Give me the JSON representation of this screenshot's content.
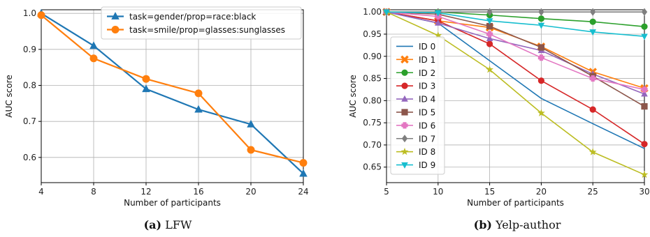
{
  "chart_data": [
    {
      "type": "line",
      "caption_label": "(a)",
      "caption_text": "LFW",
      "xlabel": "Number of participants",
      "ylabel": "AUC score",
      "xlim": [
        4,
        24
      ],
      "ylim": [
        0.53,
        1.01
      ],
      "xticks": [
        4,
        8,
        12,
        16,
        20,
        24
      ],
      "yticks": [
        0.6,
        0.7,
        0.8,
        0.9,
        1.0
      ],
      "ytick_labels": [
        "0.6",
        "0.7",
        "0.8",
        "0.9",
        "1.0"
      ],
      "grid": true,
      "legend": "top-right",
      "x": [
        4,
        8,
        12,
        16,
        20,
        24
      ],
      "series": [
        {
          "name": "task=gender/prop=race:black",
          "color": "#1f77b4",
          "marker": "triangle-up",
          "values": [
            1.0,
            0.91,
            0.79,
            0.733,
            0.692,
            0.555
          ]
        },
        {
          "name": "task=smile/prop=glasses:sunglasses",
          "color": "#ff7f0e",
          "marker": "circle",
          "values": [
            0.995,
            0.875,
            0.818,
            0.778,
            0.621,
            0.585
          ]
        }
      ]
    },
    {
      "type": "line",
      "caption_label": "(b)",
      "caption_text": "Yelp-author",
      "xlabel": "Number of participants",
      "ylabel": "AUC score",
      "xlim": [
        5,
        30
      ],
      "ylim": [
        0.615,
        1.005
      ],
      "xticks": [
        5,
        10,
        15,
        20,
        25,
        30
      ],
      "yticks": [
        0.65,
        0.7,
        0.75,
        0.8,
        0.85,
        0.9,
        0.95,
        1.0
      ],
      "ytick_labels": [
        "0.65",
        "0.70",
        "0.75",
        "0.80",
        "0.85",
        "0.90",
        "0.95",
        "1.00"
      ],
      "grid": true,
      "legend": "left",
      "x": [
        5,
        10,
        15,
        20,
        25,
        30
      ],
      "series": [
        {
          "name": "ID 0",
          "color": "#1f77b4",
          "marker": "none",
          "values": [
            1.0,
            0.975,
            0.89,
            0.805,
            0.748,
            0.692
          ]
        },
        {
          "name": "ID 1",
          "color": "#ff7f0e",
          "marker": "x",
          "values": [
            1.0,
            0.98,
            0.965,
            0.922,
            0.865,
            0.828
          ]
        },
        {
          "name": "ID 2",
          "color": "#2ca02c",
          "marker": "circle",
          "values": [
            1.0,
            1.0,
            0.993,
            0.985,
            0.978,
            0.967
          ]
        },
        {
          "name": "ID 3",
          "color": "#d62728",
          "marker": "circle",
          "values": [
            1.0,
            0.98,
            0.928,
            0.845,
            0.78,
            0.702
          ]
        },
        {
          "name": "ID 4",
          "color": "#9467bd",
          "marker": "triangle-up",
          "values": [
            1.0,
            0.975,
            0.94,
            0.913,
            0.86,
            0.815
          ]
        },
        {
          "name": "ID 5",
          "color": "#8c564b",
          "marker": "square",
          "values": [
            1.0,
            0.995,
            0.968,
            0.92,
            0.855,
            0.787
          ]
        },
        {
          "name": "ID 6",
          "color": "#e377c2",
          "marker": "plus",
          "values": [
            1.0,
            0.99,
            0.95,
            0.897,
            0.85,
            0.825
          ]
        },
        {
          "name": "ID 7",
          "color": "#7f7f7f",
          "marker": "diamond",
          "values": [
            1.0,
            1.0,
            1.0,
            1.0,
            1.0,
            1.0
          ]
        },
        {
          "name": "ID 8",
          "color": "#bcbd22",
          "marker": "star",
          "values": [
            1.0,
            0.947,
            0.87,
            0.772,
            0.684,
            0.633
          ]
        },
        {
          "name": "ID 9",
          "color": "#17becf",
          "marker": "triangle-down",
          "values": [
            1.0,
            0.998,
            0.98,
            0.97,
            0.955,
            0.945
          ]
        }
      ]
    }
  ]
}
